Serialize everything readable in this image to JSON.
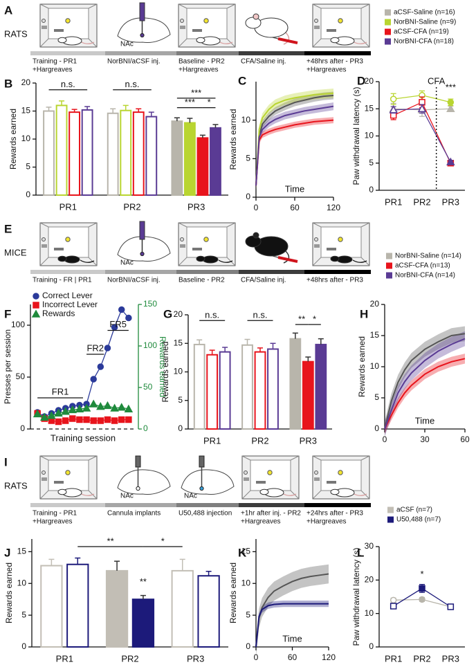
{
  "schematics": [
    {
      "panel": "A",
      "species": "RATS",
      "steps": [
        {
          "image": "chamber-rat",
          "lines": [
            "Training - PR1",
            "+Hargreaves"
          ],
          "bar_color": "#c9c9c9"
        },
        {
          "image": "brain-syringe",
          "label": "NAc",
          "lines": [
            "NorBNI/aCSF inj."
          ],
          "bar_color": "#a6a6a6"
        },
        {
          "image": "chamber-rat",
          "lines": [
            "Baseline - PR2",
            "+Hargreaves"
          ],
          "bar_color": "#7f7f7f"
        },
        {
          "image": "rat-injection",
          "lines": [
            "CFA/Saline inj."
          ],
          "bar_color": "#3c3c3c"
        },
        {
          "image": "chamber-rat",
          "lines": [
            "+48hrs after - PR3",
            "+Hargreaves"
          ],
          "bar_color": "#000000"
        }
      ],
      "legend": [
        {
          "name": "aCSF-Saline (n=16)",
          "color": "#b8b5ab"
        },
        {
          "name": "NorBNI-Saline (n=9)",
          "color": "#b9d531"
        },
        {
          "name": "aCSF-CFA (n=19)",
          "color": "#e8141c"
        },
        {
          "name": "NorBNI-CFA (n=18)",
          "color": "#5a3b94"
        }
      ]
    },
    {
      "panel": "E",
      "species": "MICE",
      "steps": [
        {
          "image": "chamber-mouse",
          "lines": [
            "Training - FR | PR1"
          ],
          "bar_color": "#c9c9c9"
        },
        {
          "image": "brain-syringe",
          "label": "NAc",
          "lines": [
            "NorBNI/aCSF inj."
          ],
          "bar_color": "#a6a6a6"
        },
        {
          "image": "chamber-mouse",
          "lines": [
            "Baseline - PR2"
          ],
          "bar_color": "#7f7f7f"
        },
        {
          "image": "mouse-injection",
          "lines": [
            "CFA/Saline inj."
          ],
          "bar_color": "#3c3c3c"
        },
        {
          "image": "chamber-mouse",
          "lines": [
            "+48hrs after - PR3"
          ],
          "bar_color": "#000000"
        }
      ],
      "legend": [
        {
          "name": "NorBNI-Saline (n=14)",
          "color": "#b8b5ab"
        },
        {
          "name": "aCSF-CFA (n=13)",
          "color": "#e8141c"
        },
        {
          "name": "NorBNI-CFA (n=14)",
          "color": "#5a3b94"
        }
      ]
    },
    {
      "panel": "I",
      "species": "RATS",
      "steps": [
        {
          "image": "chamber-rat",
          "lines": [
            "Training - PR1",
            "+Hargreaves"
          ],
          "bar_color": "#c9c9c9"
        },
        {
          "image": "brain-cannula",
          "label": "NAc",
          "lines": [
            "Cannula implants"
          ],
          "bar_color": "#a6a6a6"
        },
        {
          "image": "brain-cannula-drug",
          "label": "NAc",
          "lines": [
            "U50,488 injection"
          ],
          "bar_color": "#7f7f7f"
        },
        {
          "image": "chamber-rat",
          "lines": [
            "+1hr after inj. - PR2",
            "+Hargreaves"
          ],
          "bar_color": "#3c3c3c"
        },
        {
          "image": "chamber-rat",
          "lines": [
            "+24hrs after - PR3",
            "+Hargreaves"
          ],
          "bar_color": "#000000"
        }
      ],
      "legend": [
        {
          "name": "aCSF (n=7)",
          "color": "#c2beb5"
        },
        {
          "name": "U50,488 (n=7)",
          "color": "#1c1a7a"
        }
      ]
    }
  ],
  "chart_data": [
    {
      "panel": "B",
      "type": "bar",
      "y_label": "Rewards earned",
      "categories": [
        "PR1",
        "PR2",
        "PR3"
      ],
      "filled": [
        false,
        false,
        true
      ],
      "ylim": [
        0,
        20
      ],
      "yticks": [
        0,
        5,
        10,
        15,
        20
      ],
      "series": [
        {
          "color": "#b8b5ab",
          "values": [
            15,
            14.6,
            13.2
          ],
          "errors": [
            0.7,
            0.8,
            0.6
          ]
        },
        {
          "color": "#b9d531",
          "values": [
            16,
            15.1,
            12.9
          ],
          "errors": [
            0.8,
            0.9,
            0.8
          ]
        },
        {
          "color": "#e8141c",
          "values": [
            14.8,
            14.8,
            10.2
          ],
          "errors": [
            0.5,
            0.6,
            0.5
          ]
        },
        {
          "color": "#5a3b94",
          "values": [
            15.2,
            14,
            12
          ],
          "errors": [
            0.6,
            0.8,
            0.6
          ]
        }
      ],
      "annotations": [
        "n.s.",
        "n.s.",
        "***",
        "***",
        "*"
      ]
    },
    {
      "panel": "C",
      "type": "line",
      "y_label": "Rewards earned",
      "x_label": "Time",
      "x": [
        0,
        5,
        10,
        20,
        30,
        45,
        60,
        75,
        90,
        105,
        120
      ],
      "xlim": [
        0,
        120
      ],
      "xticks": [
        0,
        60,
        120
      ],
      "ylim": [
        0,
        15
      ],
      "yticks": [
        0,
        5,
        10
      ],
      "series": [
        {
          "color": "#555555",
          "values": [
            1.5,
            8,
            9.5,
            10.5,
            11.2,
            11.8,
            12.3,
            12.6,
            12.9,
            13.1,
            13.2
          ],
          "errors": [
            0.5,
            0.5,
            0.5,
            0.5,
            0.5,
            0.5,
            0.5,
            0.5,
            0.5,
            0.5,
            0.5
          ]
        },
        {
          "color": "#b9d531",
          "values": [
            1.5,
            8.8,
            10.3,
            11.4,
            12.1,
            12.6,
            12.9,
            13.1,
            13.3,
            13.4,
            13.5
          ],
          "errors": [
            0.6,
            0.6,
            0.6,
            0.6,
            0.6,
            0.6,
            0.6,
            0.6,
            0.6,
            0.6,
            0.6
          ]
        },
        {
          "color": "#e8141c",
          "values": [
            1.5,
            7.4,
            8.1,
            8.5,
            8.8,
            9.1,
            9.4,
            9.6,
            9.8,
            9.9,
            10
          ],
          "errors": [
            0.4,
            0.4,
            0.4,
            0.4,
            0.4,
            0.4,
            0.4,
            0.4,
            0.4,
            0.4,
            0.4
          ]
        },
        {
          "color": "#5a3b94",
          "values": [
            1.5,
            7.8,
            8.8,
            9.6,
            10.1,
            10.6,
            10.9,
            11.2,
            11.4,
            11.6,
            11.8
          ],
          "errors": [
            0.5,
            0.5,
            0.5,
            0.5,
            0.5,
            0.5,
            0.5,
            0.5,
            0.5,
            0.5,
            0.5
          ]
        }
      ]
    },
    {
      "panel": "D",
      "type": "line",
      "y_label": "Paw withdrawal latency (s)",
      "categories": [
        "PR1",
        "PR2",
        "PR3"
      ],
      "filled": [
        false,
        false,
        true
      ],
      "ylim": [
        0,
        20
      ],
      "yticks": [
        0,
        5,
        10,
        15,
        20
      ],
      "series": [
        {
          "color": "#b8b5ab",
          "marker": "triangle",
          "values": [
            15,
            14.8,
            15
          ],
          "errors": [
            1,
            1.2,
            0.5
          ]
        },
        {
          "color": "#b9d531",
          "marker": "circle",
          "values": [
            16.8,
            17.5,
            16.2
          ],
          "errors": [
            1,
            0.8,
            0.6
          ]
        },
        {
          "color": "#e8141c",
          "marker": "square",
          "values": [
            13.8,
            16.2,
            5
          ],
          "errors": [
            0.8,
            1,
            0.3
          ]
        },
        {
          "color": "#5a3b94",
          "marker": "triangle",
          "values": [
            14.8,
            15,
            5.2
          ],
          "errors": [
            0.6,
            0.8,
            0.3
          ]
        }
      ],
      "annotations": [
        "CFA",
        "***"
      ]
    },
    {
      "panel": "F",
      "type": "line",
      "y_label": "Presses per session",
      "y2_label": "Rewards earned",
      "x_label": "Training session",
      "x": [
        1,
        2,
        3,
        4,
        5,
        6,
        7,
        8,
        9,
        10,
        11,
        12,
        13,
        14
      ],
      "xlim": [
        0,
        15
      ],
      "ylim": [
        0,
        120
      ],
      "yticks": [
        0,
        50,
        100
      ],
      "y2lim": [
        0,
        150
      ],
      "y2ticks": [
        0,
        50,
        100,
        150
      ],
      "legend": "top-left",
      "series": [
        {
          "name": "Correct Lever",
          "color": "#2b3a9a",
          "marker": "circle",
          "values": [
            16,
            12,
            15,
            18,
            20,
            22,
            23,
            24,
            48,
            60,
            78,
            98,
            115,
            107
          ]
        },
        {
          "name": "Incorrect Lever",
          "color": "#e8141c",
          "marker": "square",
          "values": [
            15,
            10,
            8,
            7,
            8,
            10,
            9,
            9,
            8,
            8,
            9,
            8,
            9,
            9
          ]
        },
        {
          "name": "Rewards",
          "color": "#1f8a3c",
          "marker": "triangle",
          "axis": "y2",
          "values": [
            18,
            14,
            16,
            19,
            21,
            23,
            24,
            25,
            30,
            27,
            28,
            25,
            26,
            24
          ]
        }
      ],
      "annotations": [
        "FR1",
        "FR2",
        "FR5"
      ]
    },
    {
      "panel": "G",
      "type": "bar",
      "y_label": "Rewards earned",
      "categories": [
        "PR1",
        "PR2",
        "PR3"
      ],
      "filled": [
        false,
        false,
        true
      ],
      "ylim": [
        0,
        20
      ],
      "yticks": [
        0,
        5,
        10,
        15,
        20
      ],
      "series": [
        {
          "color": "#b8b5ab",
          "values": [
            14.8,
            14.7,
            15.8
          ],
          "errors": [
            0.8,
            1,
            1
          ]
        },
        {
          "color": "#e8141c",
          "values": [
            13,
            13.5,
            11.8
          ],
          "errors": [
            0.8,
            0.7,
            0.8
          ]
        },
        {
          "color": "#5a3b94",
          "values": [
            13.5,
            14,
            14.8
          ],
          "errors": [
            0.8,
            1,
            1
          ]
        }
      ],
      "annotations": [
        "n.s.",
        "n.s.",
        "**",
        "*"
      ]
    },
    {
      "panel": "H",
      "type": "line",
      "y_label": "Rewards earned",
      "x_label": "Time",
      "x": [
        0,
        5,
        10,
        15,
        20,
        30,
        40,
        50,
        60
      ],
      "xlim": [
        0,
        60
      ],
      "xticks": [
        0,
        30,
        60
      ],
      "ylim": [
        0,
        20
      ],
      "yticks": [
        0,
        5,
        10,
        15,
        20
      ],
      "series": [
        {
          "color": "#555555",
          "values": [
            0,
            4.5,
            7.5,
            9.5,
            11,
            12.8,
            14,
            15,
            15.3
          ],
          "errors": [
            1.2,
            1.2,
            1.2,
            1.2,
            1.2,
            1.2,
            1.2,
            1.2,
            1.2
          ]
        },
        {
          "color": "#e8141c",
          "values": [
            0,
            2.2,
            4.2,
            5.8,
            7,
            8.8,
            10,
            10.8,
            11.3
          ],
          "errors": [
            0.8,
            0.8,
            0.8,
            0.8,
            0.8,
            0.8,
            0.8,
            0.8,
            0.8
          ]
        },
        {
          "color": "#5a3b94",
          "values": [
            0,
            3,
            5.8,
            7.6,
            9,
            11,
            12.5,
            13.6,
            14.5
          ],
          "errors": [
            1.2,
            1.2,
            1.2,
            1.2,
            1.2,
            1.2,
            1.2,
            1.2,
            1.2
          ]
        }
      ]
    },
    {
      "panel": "J",
      "type": "bar",
      "y_label": "Rewards earned",
      "categories": [
        "PR1",
        "PR2",
        "PR3"
      ],
      "filled": [
        false,
        true,
        false
      ],
      "ylim": [
        0,
        17
      ],
      "yticks": [
        0,
        5,
        10,
        15
      ],
      "series": [
        {
          "color": "#c2beb5",
          "values": [
            12.8,
            12,
            12
          ],
          "errors": [
            1,
            1.5,
            1.8
          ]
        },
        {
          "color": "#1c1a7a",
          "values": [
            13,
            7.5,
            11.2
          ],
          "errors": [
            1,
            0.6,
            0.7
          ]
        }
      ],
      "annotations": [
        "**",
        "*",
        "**"
      ]
    },
    {
      "panel": "K",
      "type": "line",
      "y_label": "Rewards earned",
      "x_label": "Time",
      "x": [
        0,
        5,
        10,
        20,
        30,
        45,
        60,
        75,
        90,
        105,
        120
      ],
      "xlim": [
        0,
        120
      ],
      "xticks": [
        0,
        60,
        120
      ],
      "ylim": [
        0,
        17
      ],
      "yticks": [
        0,
        5,
        10,
        15
      ],
      "series": [
        {
          "color": "#555555",
          "values": [
            0,
            4.5,
            6.2,
            7.8,
            8.8,
            9.6,
            10.3,
            10.8,
            11.1,
            11.3,
            11.5
          ],
          "errors": [
            1.5,
            1.5,
            1.5,
            1.5,
            1.5,
            1.5,
            1.5,
            1.5,
            1.5,
            1.5,
            1.5
          ]
        },
        {
          "color": "#1c1a7a",
          "values": [
            0,
            4.8,
            5.9,
            6.5,
            6.7,
            6.8,
            6.8,
            6.8,
            6.8,
            6.8,
            6.8
          ],
          "errors": [
            0.5,
            0.5,
            0.5,
            0.5,
            0.5,
            0.5,
            0.5,
            0.5,
            0.5,
            0.5,
            0.5
          ]
        }
      ]
    },
    {
      "panel": "L",
      "type": "line",
      "y_label": "Paw withdrawal latency (s)",
      "categories": [
        "PR1",
        "PR2",
        "PR3"
      ],
      "filled": [
        false,
        true,
        false
      ],
      "ylim": [
        0,
        30
      ],
      "yticks": [
        0,
        10,
        20,
        30
      ],
      "series": [
        {
          "color": "#b8b5ab",
          "marker": "circle",
          "values": [
            14,
            14.2,
            12
          ],
          "errors": [
            0.6,
            0.6,
            0.4
          ]
        },
        {
          "color": "#1c1a7a",
          "marker": "square",
          "values": [
            12.2,
            17.5,
            12
          ],
          "errors": [
            0.4,
            1.2,
            0.4
          ]
        }
      ],
      "annotations": [
        "*"
      ]
    }
  ]
}
